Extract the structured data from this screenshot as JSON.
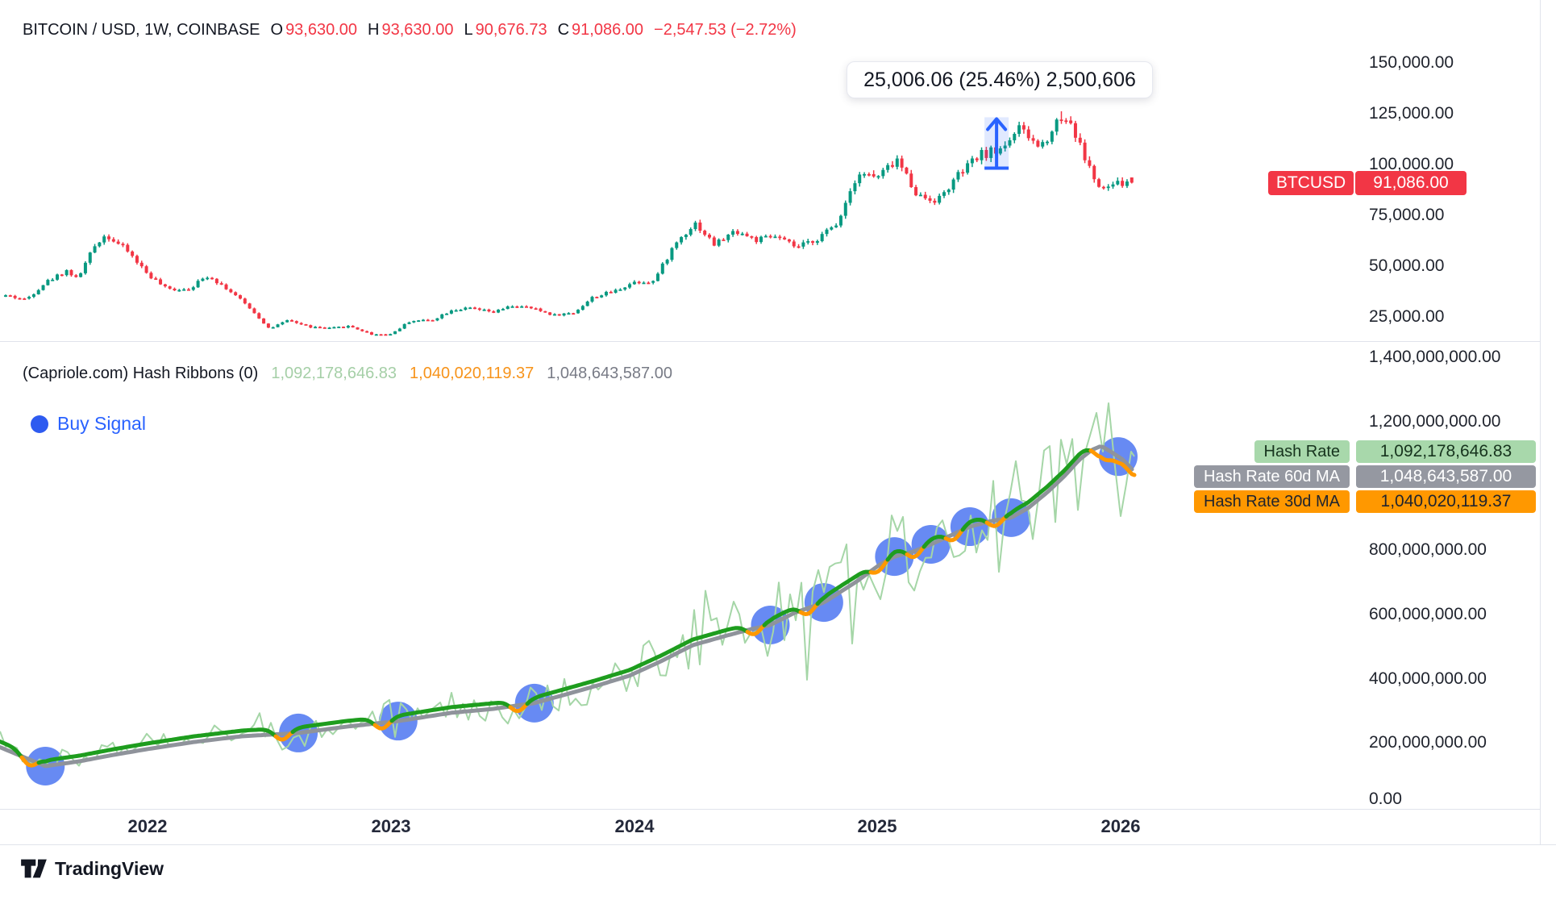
{
  "header": {
    "title": "BITCOIN / USD, 1W, COINBASE",
    "o_label": "O",
    "o": "93,630.00",
    "h_label": "H",
    "h": "93,630.00",
    "l_label": "L",
    "l": "90,676.73",
    "c_label": "C",
    "c": "91,086.00",
    "change": "−2,547.53 (−2.72%)"
  },
  "measure_tooltip": {
    "text": "25,006.06 (25.46%) 2,500,606"
  },
  "price_badge": {
    "symbol": "BTCUSD",
    "value": "91,086.00"
  },
  "price_axis": [
    {
      "label": "150,000.00",
      "value": 150000
    },
    {
      "label": "125,000.00",
      "value": 125000
    },
    {
      "label": "100,000.00",
      "value": 100000
    },
    {
      "label": "75,000.00",
      "value": 75000
    },
    {
      "label": "50,000.00",
      "value": 50000
    },
    {
      "label": "25,000.00",
      "value": 25000
    }
  ],
  "indicator": {
    "title": "(Capriole.com) Hash Ribbons (0)",
    "hash_rate": "1,092,178,646.83",
    "ma30": "1,040,020,119.37",
    "ma60": "1,048,643,587.00"
  },
  "buy_signal_legend": "Buy Signal",
  "hash_badges": [
    {
      "label": "Hash Rate",
      "value": "1,092,178,646.83",
      "bg": "#a8d8ab",
      "fg": "#16331d"
    },
    {
      "label": "Hash Rate 60d MA",
      "value": "1,048,643,587.00",
      "bg": "#9598a1",
      "fg": "#ffffff"
    },
    {
      "label": "Hash Rate 30d MA",
      "value": "1,040,020,119.37",
      "bg": "#ff9800",
      "fg": "#20242e"
    }
  ],
  "indicator_axis": [
    {
      "label": "1,400,000,000.00",
      "value": 1400000000
    },
    {
      "label": "1,200,000,000.00",
      "value": 1200000000
    },
    {
      "label": "800,000,000.00",
      "value": 800000000
    },
    {
      "label": "600,000,000.00",
      "value": 600000000
    },
    {
      "label": "400,000,000.00",
      "value": 400000000
    },
    {
      "label": "200,000,000.00",
      "value": 200000000
    },
    {
      "label": "0.00",
      "value": 0
    }
  ],
  "time_axis": [
    {
      "label": "2022",
      "value": 2022
    },
    {
      "label": "2023",
      "value": 2023
    },
    {
      "label": "2024",
      "value": 2024
    },
    {
      "label": "2025",
      "value": 2025
    },
    {
      "label": "2026",
      "value": 2026
    }
  ],
  "footer": {
    "brand": "TradingView"
  },
  "colors": {
    "up": "#089981",
    "down": "#F23645",
    "accent_blue": "#2962FF",
    "signal_blue": "#567df2",
    "ma30_green": "#1e9d1e",
    "ma30_orange": "#ff9800",
    "ma60_gray": "#8f939b",
    "hash_raw": "#a5d6a7",
    "text": "#131722",
    "muted": "#787b86",
    "border": "#e0e3eb"
  },
  "chart_data": [
    {
      "type": "candlestick",
      "title": "BITCOIN / USD, 1W, COINBASE",
      "interval": "1W",
      "current": {
        "open": 93630.0,
        "high": 93630.0,
        "low": 90676.73,
        "close": 91086.0,
        "change": -2547.53,
        "change_pct": -2.72
      },
      "ylim": [
        14000,
        172000
      ],
      "y_ticks": [
        150000,
        125000,
        100000,
        75000,
        50000,
        25000
      ],
      "x_years": [
        2022,
        2023,
        2024,
        2025,
        2026
      ],
      "monthly_closes": [
        [
          2021.42,
          35500
        ],
        [
          2021.5,
          33500
        ],
        [
          2021.58,
          42000
        ],
        [
          2021.67,
          48000
        ],
        [
          2021.71,
          43500
        ],
        [
          2021.79,
          61500
        ],
        [
          2021.83,
          65500
        ],
        [
          2021.92,
          57200
        ],
        [
          2022.0,
          46200
        ],
        [
          2022.08,
          38500
        ],
        [
          2022.17,
          39000
        ],
        [
          2022.25,
          45500
        ],
        [
          2022.33,
          38600
        ],
        [
          2022.42,
          29500
        ],
        [
          2022.5,
          19250
        ],
        [
          2022.58,
          23300
        ],
        [
          2022.67,
          20050
        ],
        [
          2022.75,
          19400
        ],
        [
          2022.83,
          20500
        ],
        [
          2022.92,
          16500
        ],
        [
          2023.0,
          16550
        ],
        [
          2023.08,
          23100
        ],
        [
          2023.17,
          23500
        ],
        [
          2023.25,
          28500
        ],
        [
          2023.33,
          29250
        ],
        [
          2023.42,
          27200
        ],
        [
          2023.5,
          30470
        ],
        [
          2023.58,
          29230
        ],
        [
          2023.67,
          25930
        ],
        [
          2023.75,
          26960
        ],
        [
          2023.83,
          34660
        ],
        [
          2023.92,
          37700
        ],
        [
          2024.0,
          42280
        ],
        [
          2024.08,
          42580
        ],
        [
          2024.17,
          61200
        ],
        [
          2024.25,
          71330
        ],
        [
          2024.33,
          60640
        ],
        [
          2024.42,
          67530
        ],
        [
          2024.5,
          62680
        ],
        [
          2024.58,
          64620
        ],
        [
          2024.67,
          58970
        ],
        [
          2024.75,
          63330
        ],
        [
          2024.83,
          70220
        ],
        [
          2024.92,
          96400
        ],
        [
          2025.0,
          93430
        ],
        [
          2025.08,
          102400
        ],
        [
          2025.17,
          84350
        ],
        [
          2025.25,
          82550
        ],
        [
          2025.33,
          94180
        ],
        [
          2025.42,
          104600
        ],
        [
          2025.5,
          107140
        ],
        [
          2025.58,
          117500
        ],
        [
          2025.67,
          108240
        ],
        [
          2025.75,
          123500
        ],
        [
          2025.79,
          122000
        ],
        [
          2025.83,
          110000
        ],
        [
          2025.88,
          96000
        ],
        [
          2025.92,
          86500
        ],
        [
          2025.96,
          90000
        ],
        [
          2026.05,
          91086
        ]
      ],
      "measure_tool": {
        "from_price": 98230,
        "to_price": 123236,
        "at_frac": 2025.49,
        "label": "25,006.06 (25.46%) 2,500,606"
      }
    },
    {
      "type": "line",
      "title": "(Capriole.com) Hash Ribbons (0)",
      "ylim": [
        0,
        1400000000
      ],
      "y_ticks": [
        1400000000,
        1200000000,
        800000000,
        600000000,
        400000000,
        200000000,
        0
      ],
      "series": [
        {
          "name": "Hash Rate",
          "last": 1092178646.83
        },
        {
          "name": "Hash Rate 30d MA",
          "last": 1040020119.37
        },
        {
          "name": "Hash Rate 60d MA",
          "last": 1048643587.0
        }
      ],
      "ma60_series": [
        [
          2021.39,
          188000000
        ],
        [
          2021.58,
          128000000
        ],
        [
          2021.72,
          143000000
        ],
        [
          2021.86,
          163000000
        ],
        [
          2022.0,
          181000000
        ],
        [
          2022.19,
          203000000
        ],
        [
          2022.39,
          221000000
        ],
        [
          2022.62,
          231000000
        ],
        [
          2022.82,
          251000000
        ],
        [
          2023.03,
          268000000
        ],
        [
          2023.25,
          294000000
        ],
        [
          2023.42,
          306000000
        ],
        [
          2023.59,
          324000000
        ],
        [
          2023.71,
          349000000
        ],
        [
          2023.85,
          379000000
        ],
        [
          2023.98,
          409000000
        ],
        [
          2024.11,
          454000000
        ],
        [
          2024.24,
          504000000
        ],
        [
          2024.38,
          534000000
        ],
        [
          2024.48,
          554000000
        ],
        [
          2024.56,
          567000000
        ],
        [
          2024.66,
          605000000
        ],
        [
          2024.78,
          637000000
        ],
        [
          2024.91,
          700000000
        ],
        [
          2025.01,
          755000000
        ],
        [
          2025.07,
          780000000
        ],
        [
          2025.14,
          793000000
        ],
        [
          2025.22,
          818000000
        ],
        [
          2025.3,
          845000000
        ],
        [
          2025.38,
          873000000
        ],
        [
          2025.47,
          891000000
        ],
        [
          2025.55,
          901000000
        ],
        [
          2025.62,
          931000000
        ],
        [
          2025.7,
          981000000
        ],
        [
          2025.77,
          1031000000
        ],
        [
          2025.83,
          1081000000
        ],
        [
          2025.88,
          1111000000
        ],
        [
          2025.92,
          1124000000
        ],
        [
          2025.96,
          1106000000
        ],
        [
          2026.01,
          1081000000
        ],
        [
          2026.05,
          1048643587
        ]
      ],
      "buy_signals": [
        2021.58,
        2022.62,
        2023.03,
        2023.59,
        2024.56,
        2024.78,
        2025.07,
        2025.22,
        2025.38,
        2025.55,
        2025.99
      ]
    }
  ]
}
